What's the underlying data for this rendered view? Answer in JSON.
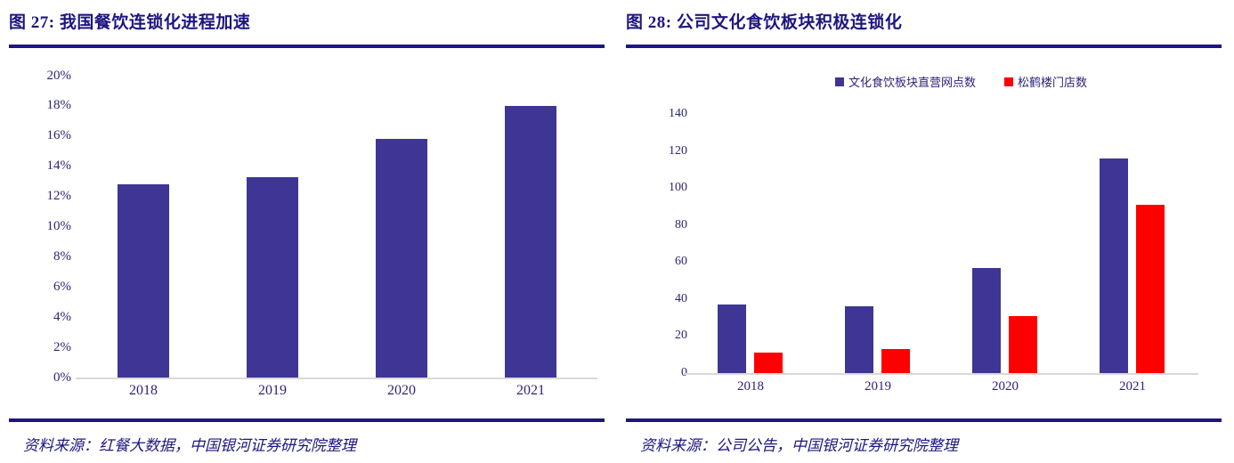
{
  "accent_colors": {
    "navy_text_and_rules": "#1D1680",
    "axis_label_navy": "#2B2577",
    "bar_indigo": "#3E3595",
    "bar_red": "#FF0000",
    "baseline_gray": "#D9D9D9"
  },
  "panels": [
    {
      "title": "图 27: 我国餐饮连锁化进程加速",
      "source": "资料来源：红餐大数据，中国银河证券研究院整理"
    },
    {
      "title": "图 28: 公司文化食饮板块积极连锁化",
      "source": "资料来源：公司公告，中国银河证券研究院整理"
    }
  ],
  "chart_data": [
    {
      "type": "bar",
      "title": "图 27: 我国餐饮连锁化进程加速",
      "categories": [
        "2018",
        "2019",
        "2020",
        "2021"
      ],
      "series": [
        {
          "color": "#3E3595",
          "values": [
            12.8,
            13.3,
            15.8,
            18.0
          ]
        }
      ],
      "ylim": [
        0,
        20
      ],
      "ytick": 2,
      "yformat": "percent",
      "grid": false,
      "legend": false
    },
    {
      "type": "bar",
      "title": "图 28: 公司文化食饮板块积极连锁化",
      "categories": [
        "2018",
        "2019",
        "2020",
        "2021"
      ],
      "series": [
        {
          "name": "文化食饮板块直营网点数",
          "color": "#3E3595",
          "values": [
            37,
            36,
            57,
            116
          ]
        },
        {
          "name": "松鹤楼门店数",
          "color": "#FF0000",
          "values": [
            11,
            13,
            31,
            91
          ]
        }
      ],
      "ylim": [
        0,
        140
      ],
      "ytick": 20,
      "yformat": "number",
      "grid": false,
      "legend": true,
      "legend_position": "top"
    }
  ]
}
